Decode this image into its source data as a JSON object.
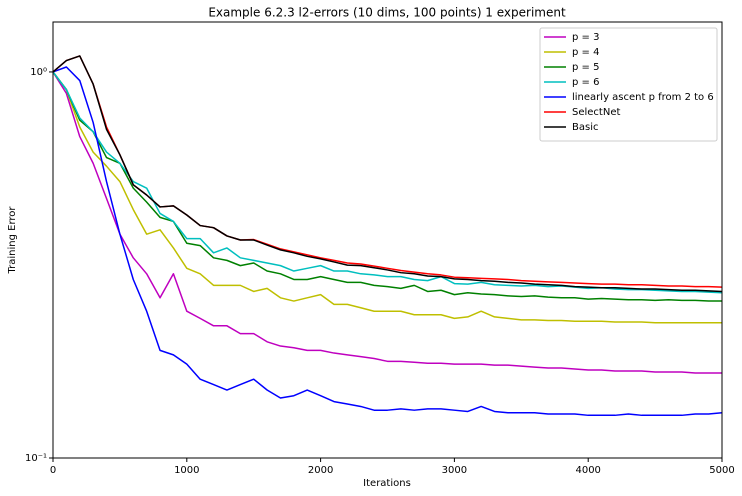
{
  "chart_data": {
    "type": "line",
    "title": "Example 6.2.3   l2-errors (10 dims, 100 points)  1 experiment",
    "x_label": "Iterations",
    "y_label": "Training Error",
    "yscale": "log",
    "legend": "upper right",
    "grid": false,
    "xlim": [
      0,
      5000
    ],
    "xticks": [
      0,
      1000,
      2000,
      3000,
      4000,
      5000
    ],
    "ylim": [
      0.1,
      1.347
    ],
    "yticks": [
      {
        "value": 0.1,
        "label": "10⁻¹"
      },
      {
        "value": 1,
        "label": "10⁰"
      }
    ],
    "x": [
      0,
      100,
      200,
      300,
      400,
      500,
      600,
      700,
      800,
      900,
      1000,
      1100,
      1200,
      1300,
      1400,
      1500,
      1600,
      1700,
      1800,
      1900,
      2000,
      2100,
      2200,
      2300,
      2400,
      2500,
      2600,
      2700,
      2800,
      2900,
      3000,
      3100,
      3200,
      3300,
      3400,
      3500,
      3600,
      3700,
      3800,
      3900,
      4000,
      4100,
      4200,
      4300,
      4400,
      4500,
      4600,
      4700,
      4800,
      4900,
      5000
    ],
    "series": [
      {
        "name": "p = 3",
        "color": "#bf00bf",
        "values": [
          1.0,
          0.88,
          0.68,
          0.58,
          0.47,
          0.38,
          0.33,
          0.3,
          0.26,
          0.3,
          0.24,
          0.23,
          0.22,
          0.22,
          0.21,
          0.21,
          0.2,
          0.195,
          0.193,
          0.19,
          0.19,
          0.187,
          0.185,
          0.183,
          0.181,
          0.178,
          0.178,
          0.177,
          0.176,
          0.176,
          0.175,
          0.175,
          0.175,
          0.174,
          0.174,
          0.173,
          0.172,
          0.171,
          0.171,
          0.17,
          0.169,
          0.169,
          0.168,
          0.168,
          0.168,
          0.167,
          0.167,
          0.167,
          0.166,
          0.166,
          0.166
        ]
      },
      {
        "name": "p = 4",
        "color": "#bfbf00",
        "values": [
          1.0,
          0.9,
          0.72,
          0.62,
          0.57,
          0.52,
          0.44,
          0.38,
          0.39,
          0.35,
          0.31,
          0.3,
          0.28,
          0.28,
          0.28,
          0.27,
          0.275,
          0.26,
          0.255,
          0.26,
          0.265,
          0.25,
          0.25,
          0.245,
          0.24,
          0.24,
          0.24,
          0.235,
          0.235,
          0.235,
          0.23,
          0.232,
          0.24,
          0.232,
          0.23,
          0.228,
          0.228,
          0.227,
          0.227,
          0.226,
          0.226,
          0.226,
          0.225,
          0.225,
          0.225,
          0.224,
          0.224,
          0.224,
          0.224,
          0.224,
          0.224
        ]
      },
      {
        "name": "p = 5",
        "color": "#008000",
        "values": [
          1.0,
          0.9,
          0.75,
          0.7,
          0.6,
          0.58,
          0.5,
          0.46,
          0.42,
          0.41,
          0.36,
          0.355,
          0.33,
          0.325,
          0.315,
          0.32,
          0.305,
          0.3,
          0.29,
          0.29,
          0.295,
          0.29,
          0.285,
          0.285,
          0.28,
          0.278,
          0.275,
          0.28,
          0.27,
          0.272,
          0.265,
          0.268,
          0.266,
          0.265,
          0.263,
          0.262,
          0.263,
          0.261,
          0.26,
          0.26,
          0.258,
          0.259,
          0.258,
          0.257,
          0.257,
          0.256,
          0.257,
          0.256,
          0.256,
          0.255,
          0.255
        ]
      },
      {
        "name": "p = 6",
        "color": "#00bfbf",
        "values": [
          1.0,
          0.9,
          0.76,
          0.7,
          0.62,
          0.58,
          0.52,
          0.5,
          0.43,
          0.41,
          0.37,
          0.37,
          0.34,
          0.35,
          0.33,
          0.325,
          0.32,
          0.315,
          0.305,
          0.31,
          0.315,
          0.305,
          0.305,
          0.3,
          0.298,
          0.295,
          0.295,
          0.29,
          0.288,
          0.295,
          0.283,
          0.282,
          0.285,
          0.281,
          0.28,
          0.279,
          0.28,
          0.278,
          0.279,
          0.277,
          0.275,
          0.276,
          0.274,
          0.273,
          0.273,
          0.272,
          0.271,
          0.27,
          0.27,
          0.269,
          0.268
        ]
      },
      {
        "name": "linearly ascent p from 2 to 6",
        "color": "#0000ff",
        "values": [
          1.0,
          1.03,
          0.95,
          0.74,
          0.52,
          0.38,
          0.29,
          0.24,
          0.19,
          0.185,
          0.175,
          0.16,
          0.155,
          0.15,
          0.155,
          0.16,
          0.15,
          0.143,
          0.145,
          0.15,
          0.145,
          0.14,
          0.138,
          0.136,
          0.133,
          0.133,
          0.134,
          0.133,
          0.134,
          0.134,
          0.133,
          0.132,
          0.136,
          0.132,
          0.131,
          0.131,
          0.131,
          0.13,
          0.13,
          0.13,
          0.129,
          0.129,
          0.129,
          0.13,
          0.129,
          0.129,
          0.129,
          0.129,
          0.13,
          0.13,
          0.131
        ]
      },
      {
        "name": "SelectNet",
        "color": "#ff0000",
        "values": [
          1.0,
          1.07,
          1.1,
          0.93,
          0.72,
          0.61,
          0.51,
          0.48,
          0.447,
          0.45,
          0.426,
          0.4,
          0.395,
          0.376,
          0.367,
          0.368,
          0.358,
          0.348,
          0.342,
          0.336,
          0.33,
          0.325,
          0.32,
          0.318,
          0.314,
          0.31,
          0.306,
          0.303,
          0.3,
          0.298,
          0.294,
          0.293,
          0.292,
          0.291,
          0.29,
          0.288,
          0.287,
          0.286,
          0.285,
          0.284,
          0.283,
          0.282,
          0.282,
          0.281,
          0.281,
          0.28,
          0.279,
          0.279,
          0.278,
          0.278,
          0.277
        ]
      },
      {
        "name": "Basic",
        "color": "#000000",
        "values": [
          1.0,
          1.07,
          1.1,
          0.93,
          0.71,
          0.61,
          0.51,
          0.48,
          0.447,
          0.45,
          0.426,
          0.4,
          0.395,
          0.376,
          0.367,
          0.367,
          0.356,
          0.346,
          0.34,
          0.333,
          0.328,
          0.322,
          0.316,
          0.315,
          0.311,
          0.307,
          0.302,
          0.3,
          0.296,
          0.295,
          0.291,
          0.29,
          0.288,
          0.287,
          0.285,
          0.284,
          0.282,
          0.281,
          0.28,
          0.278,
          0.277,
          0.276,
          0.276,
          0.275,
          0.274,
          0.274,
          0.273,
          0.272,
          0.272,
          0.271,
          0.27
        ]
      }
    ]
  }
}
